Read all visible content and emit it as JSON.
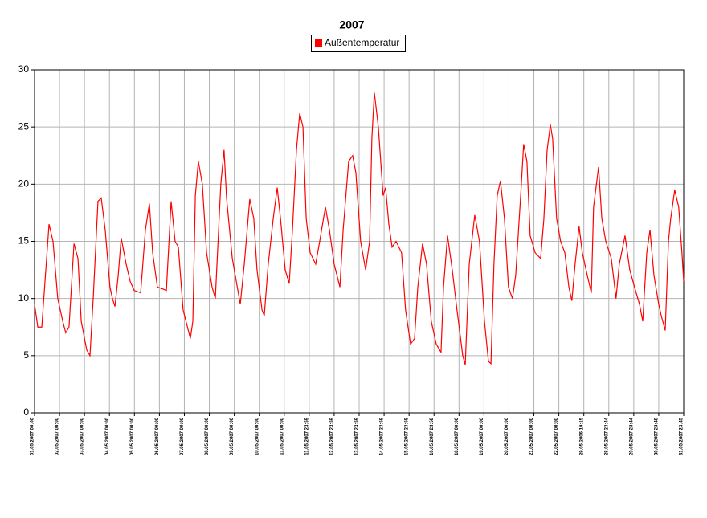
{
  "chart_data": {
    "type": "line",
    "title": "2007",
    "x": [
      0,
      0.13,
      0.29,
      0.58,
      0.74,
      0.93,
      1.13,
      1.25,
      1.38,
      1.58,
      1.74,
      1.87,
      2.09,
      2.22,
      2.35,
      2.54,
      2.67,
      2.83,
      3.02,
      3.12,
      3.22,
      3.35,
      3.47,
      3.67,
      3.83,
      3.99,
      4.25,
      4.44,
      4.6,
      4.73,
      4.92,
      5.18,
      5.28,
      5.47,
      5.63,
      5.76,
      5.95,
      6.24,
      6.34,
      6.44,
      6.56,
      6.72,
      6.89,
      7.11,
      7.24,
      7.46,
      7.59,
      7.69,
      7.92,
      8.08,
      8.24,
      8.4,
      8.62,
      8.78,
      8.91,
      9.11,
      9.2,
      9.36,
      9.56,
      9.72,
      9.85,
      10.04,
      10.2,
      10.33,
      10.49,
      10.62,
      10.75,
      10.88,
      11.04,
      11.26,
      11.42,
      11.65,
      11.81,
      12.0,
      12.23,
      12.36,
      12.58,
      12.74,
      12.87,
      13.06,
      13.26,
      13.42,
      13.51,
      13.61,
      13.77,
      13.96,
      14.06,
      14.19,
      14.32,
      14.48,
      14.7,
      14.86,
      15.06,
      15.22,
      15.35,
      15.54,
      15.7,
      15.89,
      16.09,
      16.28,
      16.38,
      16.54,
      16.73,
      16.92,
      17.15,
      17.25,
      17.41,
      17.63,
      17.82,
      18.02,
      18.18,
      18.28,
      18.4,
      18.53,
      18.66,
      18.82,
      18.98,
      19.14,
      19.27,
      19.47,
      19.59,
      19.72,
      19.85,
      20.05,
      20.27,
      20.4,
      20.53,
      20.66,
      20.75,
      20.91,
      21.07,
      21.24,
      21.4,
      21.52,
      21.65,
      21.81,
      21.94,
      22.14,
      22.3,
      22.39,
      22.59,
      22.72,
      22.88,
      23.1,
      23.29,
      23.42,
      23.65,
      23.84,
      24.03,
      24.23,
      24.36,
      24.52,
      24.65,
      24.81,
      25.0,
      25.1,
      25.26,
      25.39,
      25.48,
      25.64,
      25.8,
      25.93,
      26
    ],
    "series": [
      {
        "name": "Außentemperatur",
        "color": "#ff0000",
        "values": [
          9.5,
          7.5,
          7.5,
          16.5,
          15,
          10,
          8,
          7,
          7.5,
          14.8,
          13.5,
          8,
          5.5,
          5,
          10,
          18.5,
          18.8,
          16,
          11,
          10,
          9.3,
          12,
          15.3,
          13,
          11.5,
          10.7,
          10.5,
          16,
          18.3,
          14,
          11,
          10.8,
          10.7,
          18.5,
          15,
          14.5,
          9,
          6.5,
          8,
          19,
          22,
          20,
          14,
          11,
          10,
          20,
          23,
          18.8,
          13.5,
          11.5,
          9.5,
          13,
          18.7,
          17,
          12.5,
          9,
          8.5,
          13,
          17,
          19.7,
          17,
          12.5,
          11.3,
          16,
          23,
          26.2,
          25,
          17,
          14,
          13,
          15,
          18,
          16,
          13,
          11,
          16,
          22,
          22.5,
          21,
          15,
          12.5,
          15,
          24,
          28,
          25,
          19,
          19.7,
          16.5,
          14.5,
          15,
          14,
          9,
          6,
          6.5,
          11,
          14.8,
          13,
          8,
          6,
          5.3,
          11,
          15.5,
          12.5,
          9,
          5,
          4.2,
          13,
          17.3,
          15,
          8,
          4.5,
          4.3,
          13,
          19,
          20.3,
          17,
          11,
          10,
          12,
          19,
          23.5,
          22,
          15.5,
          14,
          13.5,
          17,
          23,
          25.2,
          24,
          17,
          15,
          14,
          11,
          9.8,
          13,
          16.3,
          14,
          12,
          10.5,
          18,
          21.5,
          17,
          15,
          13.5,
          10,
          13,
          15.5,
          12.5,
          11,
          9.5,
          8,
          14,
          16,
          12,
          9.5,
          8.5,
          7.2,
          15,
          17,
          19.5,
          18,
          14,
          11.5
        ]
      }
    ],
    "xlim": [
      0,
      26
    ],
    "xticks": [
      {
        "value": 0,
        "label": "01.05.2007 00:00"
      },
      {
        "value": 1,
        "label": "02.05.2007 00:00"
      },
      {
        "value": 2,
        "label": "03.05.2007 00:00"
      },
      {
        "value": 3,
        "label": "04.05.2007 00:00"
      },
      {
        "value": 4,
        "label": "05.05.2007 00:00"
      },
      {
        "value": 5,
        "label": "06.05.2007 00:00"
      },
      {
        "value": 6,
        "label": "07.05.2007 00:00"
      },
      {
        "value": 7,
        "label": "08.05.2007 00:00"
      },
      {
        "value": 8,
        "label": "09.05.2007 00:00"
      },
      {
        "value": 9,
        "label": "10.05.2007 00:00"
      },
      {
        "value": 10,
        "label": "11.05.2007 00:00"
      },
      {
        "value": 11,
        "label": "11.05.2007 23:59"
      },
      {
        "value": 12,
        "label": "12.05.2007 23:59"
      },
      {
        "value": 13,
        "label": "13.05.2007 23:59"
      },
      {
        "value": 14,
        "label": "14.05.2007 23:59"
      },
      {
        "value": 15,
        "label": "15.05.2007 23:58"
      },
      {
        "value": 16,
        "label": "16.05.2007 23:58"
      },
      {
        "value": 17,
        "label": "18.05.2007 00:00"
      },
      {
        "value": 18,
        "label": "19.05.2007 00:00"
      },
      {
        "value": 19,
        "label": "20.05.2007 00:00"
      },
      {
        "value": 20,
        "label": "21.05.2007 00:00"
      },
      {
        "value": 21,
        "label": "22.05.2007 00:00"
      },
      {
        "value": 22,
        "label": "29.05.2006 19:15"
      },
      {
        "value": 23,
        "label": "28.05.2007 23:44"
      },
      {
        "value": 24,
        "label": "29.05.2007 23:44"
      },
      {
        "value": 25,
        "label": "30.05.2007 23:48"
      },
      {
        "value": 26,
        "label": "31.05.2007 23:45"
      }
    ],
    "ylim": [
      0,
      30
    ],
    "yticks": [
      0,
      5,
      10,
      15,
      20,
      25,
      30
    ],
    "grid": true
  }
}
